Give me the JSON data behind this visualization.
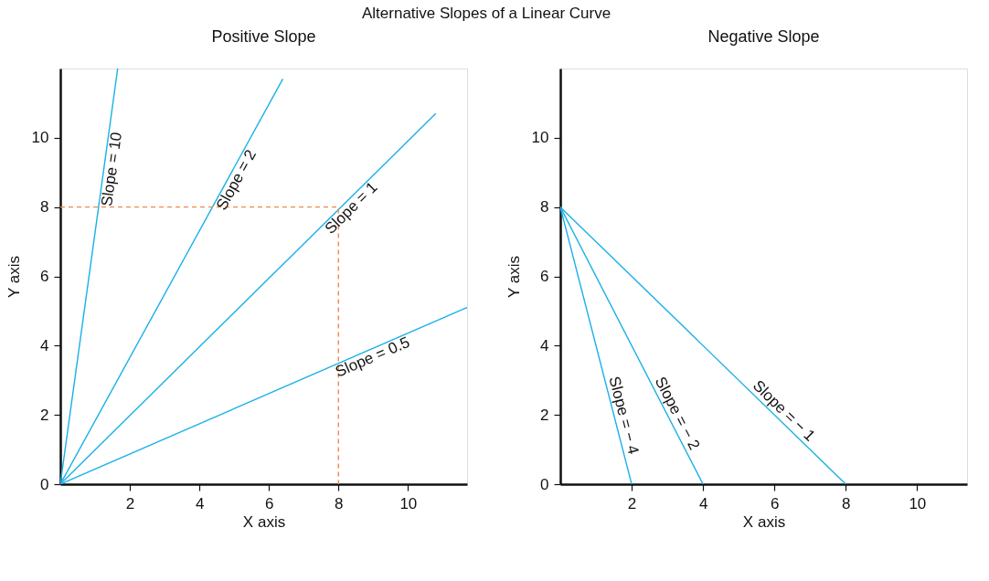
{
  "chart_data": [
    {
      "type": "line",
      "title": "Positive Slope",
      "xlabel": "X axis",
      "ylabel": "Y axis",
      "annotations": [
        "Alternative Slopes of a Linear Curve"
      ],
      "xlim": [
        0,
        11.7
      ],
      "ylim": [
        0,
        12
      ],
      "xticks": [
        2,
        4,
        6,
        8,
        10
      ],
      "yticks": [
        0,
        2,
        4,
        6,
        8,
        10
      ],
      "grid": false,
      "series": [
        {
          "name": "Slope = 10",
          "color": "#1ab0e8",
          "x": [
            0,
            1.65
          ],
          "values": [
            0,
            12
          ]
        },
        {
          "name": "Slope = 2",
          "color": "#1ab0e8",
          "x": [
            0,
            6.4
          ],
          "values": [
            0,
            11.7
          ]
        },
        {
          "name": "Slope = 1",
          "color": "#1ab0e8",
          "x": [
            0,
            10.8
          ],
          "values": [
            0,
            10.7
          ]
        },
        {
          "name": "Slope = 0.5",
          "color": "#1ab0e8",
          "x": [
            0,
            11.7
          ],
          "values": [
            0,
            5.1
          ]
        },
        {
          "color": "#f08a4b",
          "line_style": "dashed",
          "x": [
            0,
            8,
            8
          ],
          "values": [
            8,
            8,
            0
          ]
        }
      ]
    },
    {
      "type": "line",
      "title": "Negative  Slope",
      "xlabel": "X axis",
      "ylabel": "Y axis",
      "xlim": [
        0,
        11.4
      ],
      "ylim": [
        0,
        12
      ],
      "xticks": [
        2,
        4,
        6,
        8,
        10
      ],
      "yticks": [
        0,
        2,
        4,
        6,
        8,
        10
      ],
      "grid": false,
      "series": [
        {
          "name": "Slope = − 4",
          "color": "#1ab0e8",
          "x": [
            0,
            2
          ],
          "values": [
            8,
            0
          ]
        },
        {
          "name": "Slope = − 2",
          "color": "#1ab0e8",
          "x": [
            0,
            4
          ],
          "values": [
            8,
            0
          ]
        },
        {
          "name": "Slope = − 1",
          "color": "#1ab0e8",
          "x": [
            0,
            8
          ],
          "values": [
            8,
            0
          ]
        }
      ]
    }
  ]
}
